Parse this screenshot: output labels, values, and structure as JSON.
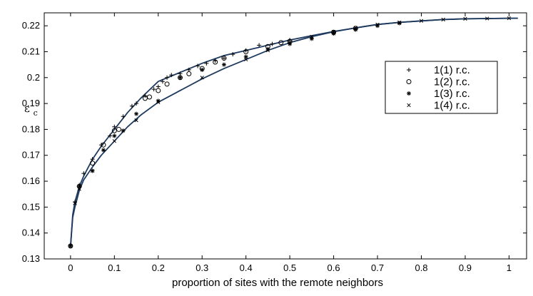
{
  "chart_data": {
    "type": "scatter",
    "title": "",
    "xlabel": "proportion of sites with the remote neighbors",
    "ylabel": {
      "symbol": "ε",
      "subscript": "c"
    },
    "xlim": [
      -0.06,
      1.04
    ],
    "ylim": [
      0.13,
      0.225
    ],
    "x_ticks": [
      0,
      0.1,
      0.2,
      0.3,
      0.4,
      0.5,
      0.6,
      0.7,
      0.8,
      0.9,
      1
    ],
    "x_tick_labels": [
      "0",
      "0.1",
      "0.2",
      "0.3",
      "0.4",
      "0.5",
      "0.6",
      "0.7",
      "0.8",
      "0.9",
      "1"
    ],
    "y_ticks": [
      0.13,
      0.14,
      0.15,
      0.16,
      0.17,
      0.18,
      0.19,
      0.2,
      0.21,
      0.22
    ],
    "y_tick_labels": [
      "0.13",
      "0.14",
      "0.15",
      "0.16",
      "0.17",
      "0.18",
      "0.19",
      "0.2",
      "0.21",
      "0.22"
    ],
    "grid": false,
    "legend_position": "right",
    "curves": [
      {
        "x": [
          0,
          0.005,
          0.01,
          0.02,
          0.03,
          0.05,
          0.07,
          0.1,
          0.13,
          0.16,
          0.2,
          0.25,
          0.3,
          0.35,
          0.4,
          0.45,
          0.5,
          0.55,
          0.6,
          0.65,
          0.7,
          0.75,
          0.8,
          0.85,
          0.9,
          0.95,
          1.0,
          1.02
        ],
        "y": [
          0.135,
          0.147,
          0.152,
          0.158,
          0.162,
          0.1685,
          0.1735,
          0.18,
          0.1865,
          0.192,
          0.1985,
          0.202,
          0.2055,
          0.2085,
          0.2105,
          0.2125,
          0.2145,
          0.2162,
          0.2178,
          0.2192,
          0.2205,
          0.2213,
          0.2219,
          0.2224,
          0.2227,
          0.2228,
          0.2229,
          0.2229
        ]
      },
      {
        "x": [
          0,
          0.005,
          0.01,
          0.02,
          0.03,
          0.05,
          0.07,
          0.1,
          0.13,
          0.16,
          0.2,
          0.25,
          0.3,
          0.35,
          0.4,
          0.45,
          0.5,
          0.55,
          0.6,
          0.65,
          0.7,
          0.75,
          0.8,
          0.85,
          0.9,
          0.95,
          1.0,
          1.02
        ],
        "y": [
          0.135,
          0.146,
          0.15,
          0.1565,
          0.1605,
          0.1655,
          0.17,
          0.1755,
          0.181,
          0.1855,
          0.1905,
          0.195,
          0.1995,
          0.2035,
          0.207,
          0.2105,
          0.2135,
          0.2158,
          0.2177,
          0.2192,
          0.2205,
          0.2213,
          0.2219,
          0.2224,
          0.2227,
          0.2228,
          0.2229,
          0.2229
        ]
      }
    ],
    "series": [
      {
        "name": "1(1) r.c.",
        "marker": "plus",
        "x": [
          0,
          0.01,
          0.02,
          0.03,
          0.05,
          0.07,
          0.09,
          0.1,
          0.12,
          0.14,
          0.15,
          0.17,
          0.19,
          0.2,
          0.21,
          0.22,
          0.23,
          0.25,
          0.27,
          0.29,
          0.31,
          0.33,
          0.35,
          0.37,
          0.4,
          0.43,
          0.46,
          0.5,
          0.6
        ],
        "y": [
          0.135,
          0.152,
          0.1585,
          0.163,
          0.1685,
          0.174,
          0.1775,
          0.181,
          0.185,
          0.189,
          0.19,
          0.193,
          0.1955,
          0.1965,
          0.1985,
          0.2,
          0.201,
          0.2015,
          0.203,
          0.2045,
          0.2055,
          0.2065,
          0.2075,
          0.209,
          0.2105,
          0.2125,
          0.213,
          0.2145,
          0.2175
        ]
      },
      {
        "name": "1(2) r.c.",
        "marker": "circle",
        "x": [
          0,
          0.02,
          0.05,
          0.075,
          0.1,
          0.11,
          0.17,
          0.18,
          0.2,
          0.22,
          0.25,
          0.27,
          0.3,
          0.33,
          0.35,
          0.4,
          0.45,
          0.48,
          0.5,
          0.6,
          0.65
        ],
        "y": [
          0.135,
          0.158,
          0.167,
          0.174,
          0.1795,
          0.18,
          0.192,
          0.1925,
          0.195,
          0.1975,
          0.2,
          0.2015,
          0.2035,
          0.206,
          0.2075,
          0.21,
          0.212,
          0.2135,
          0.214,
          0.2175,
          0.219
        ]
      },
      {
        "name": "1(3) r.c.",
        "marker": "asterisk",
        "x": [
          0,
          0.02,
          0.05,
          0.075,
          0.1,
          0.12,
          0.15,
          0.2,
          0.25,
          0.3,
          0.35,
          0.4,
          0.45,
          0.5,
          0.55,
          0.6,
          0.65,
          0.7,
          0.75
        ],
        "y": [
          0.135,
          0.158,
          0.164,
          0.172,
          0.1775,
          0.1795,
          0.186,
          0.191,
          0.2,
          0.203,
          0.205,
          0.208,
          0.211,
          0.213,
          0.215,
          0.217,
          0.2185,
          0.22,
          0.221
        ]
      },
      {
        "name": "1(4) r.c.",
        "marker": "cross",
        "x": [
          0,
          0.01,
          0.02,
          0.05,
          0.1,
          0.15,
          0.2,
          0.3,
          0.4,
          0.45,
          0.5,
          0.55,
          0.6,
          0.65,
          0.7,
          0.75,
          0.8,
          0.85,
          0.9,
          0.95,
          1.0
        ],
        "y": [
          0.135,
          0.1515,
          0.157,
          0.164,
          0.1755,
          0.1835,
          0.1905,
          0.2,
          0.207,
          0.2105,
          0.2135,
          0.2158,
          0.2177,
          0.2192,
          0.2205,
          0.2213,
          0.2219,
          0.2224,
          0.2227,
          0.2228,
          0.2229
        ]
      }
    ]
  }
}
